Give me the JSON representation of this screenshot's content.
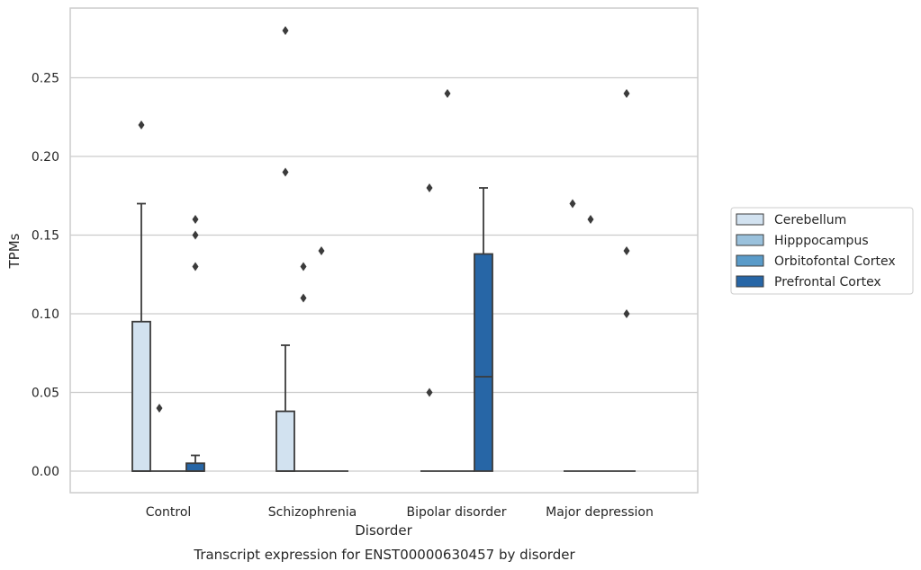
{
  "chart_data": {
    "type": "box",
    "xlabel": "Disorder",
    "ylabel": "TPMs",
    "caption": "Transcript expression for ENST00000630457 by disorder",
    "ylim": [
      -0.014,
      0.294
    ],
    "yticks": [
      0.0,
      0.05,
      0.1,
      0.15,
      0.2,
      0.25
    ],
    "ytick_labels": [
      "0.00",
      "0.05",
      "0.10",
      "0.15",
      "0.20",
      "0.25"
    ],
    "grid": "horizontal",
    "legend_position": "right",
    "categories": [
      "Control",
      "Schizophrenia",
      "Bipolar disorder",
      "Major depression"
    ],
    "series": [
      {
        "name": "Cerebellum",
        "color": "#d2e2f0",
        "boxes": [
          {
            "category": "Control",
            "q1": 0.0,
            "median": 0.0,
            "q3": 0.095,
            "whisker_low": 0.0,
            "whisker_high": 0.17,
            "outliers": [
              0.22
            ]
          },
          {
            "category": "Schizophrenia",
            "q1": 0.0,
            "median": 0.0,
            "q3": 0.038,
            "whisker_low": 0.0,
            "whisker_high": 0.08,
            "outliers": [
              0.19,
              0.28
            ]
          },
          {
            "category": "Bipolar disorder",
            "q1": 0.0,
            "median": 0.0,
            "q3": 0.0,
            "whisker_low": 0.0,
            "whisker_high": 0.0,
            "outliers": [
              0.05,
              0.18
            ]
          },
          {
            "category": "Major depression",
            "q1": 0.0,
            "median": 0.0,
            "q3": 0.0,
            "whisker_low": 0.0,
            "whisker_high": 0.0,
            "outliers": [
              0.17
            ]
          }
        ]
      },
      {
        "name": "Hipppocampus",
        "color": "#9ac1dc",
        "boxes": [
          {
            "category": "Control",
            "q1": 0.0,
            "median": 0.0,
            "q3": 0.0,
            "whisker_low": 0.0,
            "whisker_high": 0.0,
            "outliers": [
              0.04
            ]
          },
          {
            "category": "Schizophrenia",
            "q1": 0.0,
            "median": 0.0,
            "q3": 0.0,
            "whisker_low": 0.0,
            "whisker_high": 0.0,
            "outliers": [
              0.11,
              0.13
            ]
          },
          {
            "category": "Bipolar disorder",
            "q1": 0.0,
            "median": 0.0,
            "q3": 0.0,
            "whisker_low": 0.0,
            "whisker_high": 0.0,
            "outliers": [
              0.24
            ]
          },
          {
            "category": "Major depression",
            "q1": 0.0,
            "median": 0.0,
            "q3": 0.0,
            "whisker_low": 0.0,
            "whisker_high": 0.0,
            "outliers": [
              0.16
            ]
          }
        ]
      },
      {
        "name": "Orbitofontal Cortex",
        "color": "#5a9bc9",
        "boxes": [
          {
            "category": "Control",
            "q1": 0.0,
            "median": 0.0,
            "q3": 0.0,
            "whisker_low": 0.0,
            "whisker_high": 0.0,
            "outliers": []
          },
          {
            "category": "Schizophrenia",
            "q1": 0.0,
            "median": 0.0,
            "q3": 0.0,
            "whisker_low": 0.0,
            "whisker_high": 0.0,
            "outliers": [
              0.14
            ]
          },
          {
            "category": "Bipolar disorder",
            "q1": 0.0,
            "median": 0.0,
            "q3": 0.0,
            "whisker_low": 0.0,
            "whisker_high": 0.0,
            "outliers": []
          },
          {
            "category": "Major depression",
            "q1": 0.0,
            "median": 0.0,
            "q3": 0.0,
            "whisker_low": 0.0,
            "whisker_high": 0.0,
            "outliers": []
          }
        ]
      },
      {
        "name": "Prefrontal Cortex",
        "color": "#2766a6",
        "boxes": [
          {
            "category": "Control",
            "q1": 0.0,
            "median": 0.0,
            "q3": 0.005,
            "whisker_low": 0.0,
            "whisker_high": 0.01,
            "outliers": [
              0.13,
              0.15,
              0.16
            ]
          },
          {
            "category": "Schizophrenia",
            "q1": 0.0,
            "median": 0.0,
            "q3": 0.0,
            "whisker_low": 0.0,
            "whisker_high": 0.0,
            "outliers": []
          },
          {
            "category": "Bipolar disorder",
            "q1": 0.0,
            "median": 0.06,
            "q3": 0.138,
            "whisker_low": 0.0,
            "whisker_high": 0.18,
            "outliers": []
          },
          {
            "category": "Major depression",
            "q1": 0.0,
            "median": 0.0,
            "q3": 0.0,
            "whisker_low": 0.0,
            "whisker_high": 0.0,
            "outliers": [
              0.1,
              0.14,
              0.24
            ]
          }
        ]
      }
    ]
  }
}
